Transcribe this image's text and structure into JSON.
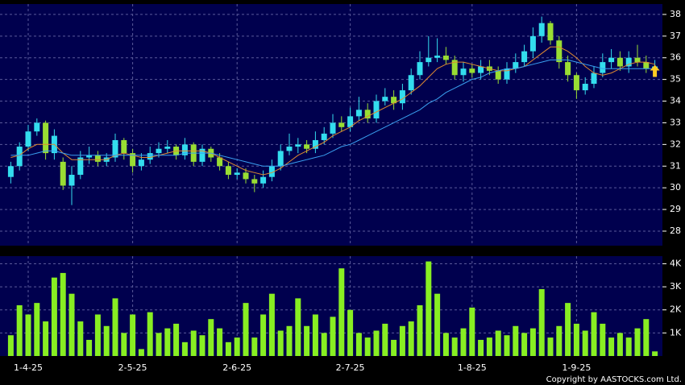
{
  "chart_data": [
    {
      "type": "candlestick",
      "up_color": "#33ddee",
      "down_color": "#99dd33",
      "open": [
        30.5,
        31.0,
        31.9,
        32.6,
        33.0,
        31.6,
        31.2,
        30.1,
        30.6,
        31.4,
        31.5,
        31.2,
        31.4,
        32.2,
        31.6,
        31.0,
        31.3,
        31.6,
        31.8,
        31.9,
        31.5,
        32.0,
        31.2,
        31.8,
        31.4,
        31.0,
        30.6,
        30.7,
        30.4,
        30.2,
        30.5,
        31.0,
        31.7,
        31.9,
        32.0,
        31.8,
        32.2,
        32.5,
        33.0,
        32.8,
        33.3,
        33.6,
        33.2,
        34.0,
        34.2,
        33.9,
        34.5,
        35.2,
        35.8,
        36.0,
        36.1,
        35.9,
        35.2,
        35.5,
        35.3,
        35.6,
        35.4,
        35.0,
        35.5,
        35.8,
        36.3,
        37.0,
        37.6,
        36.8,
        35.8,
        35.2,
        34.5,
        34.8,
        35.3,
        35.8,
        36.0,
        35.6,
        36.0,
        35.8,
        35.5
      ],
      "high": [
        31.2,
        32.1,
        32.9,
        33.2,
        33.1,
        32.7,
        31.4,
        31.0,
        31.7,
        31.9,
        31.7,
        31.6,
        32.5,
        32.3,
        31.8,
        31.6,
        31.9,
        32.1,
        32.2,
        32.0,
        32.3,
        32.1,
        32.0,
        31.9,
        31.6,
        31.2,
        30.9,
        30.9,
        30.6,
        30.8,
        31.3,
        32.0,
        32.5,
        32.3,
        32.2,
        32.6,
        32.8,
        33.4,
        33.3,
        33.7,
        34.2,
        33.9,
        34.3,
        34.6,
        34.5,
        34.8,
        35.5,
        36.3,
        37.0,
        36.9,
        36.5,
        36.1,
        35.8,
        35.7,
        35.9,
        35.9,
        35.6,
        35.8,
        36.2,
        36.6,
        37.4,
        37.9,
        37.7,
        37.0,
        36.1,
        35.3,
        35.1,
        35.6,
        36.2,
        36.4,
        36.3,
        36.3,
        36.6,
        36.1,
        35.9
      ],
      "low": [
        30.2,
        30.8,
        31.7,
        32.4,
        31.3,
        31.3,
        29.9,
        29.2,
        30.4,
        31.1,
        31.0,
        31.0,
        31.2,
        31.3,
        30.7,
        30.8,
        31.1,
        31.4,
        31.6,
        31.3,
        31.3,
        31.0,
        31.0,
        31.2,
        30.8,
        30.4,
        30.4,
        30.2,
        29.8,
        30.0,
        30.3,
        30.8,
        31.5,
        31.6,
        31.6,
        31.6,
        32.0,
        32.3,
        32.6,
        32.6,
        33.1,
        33.0,
        33.0,
        33.8,
        33.6,
        33.6,
        34.3,
        35.0,
        35.6,
        35.8,
        35.7,
        35.0,
        34.9,
        35.1,
        35.0,
        35.2,
        34.8,
        34.8,
        35.3,
        35.6,
        36.0,
        36.7,
        36.6,
        35.5,
        34.9,
        34.1,
        34.3,
        34.6,
        35.1,
        35.5,
        35.4,
        35.3,
        35.6,
        35.3,
        35.2
      ],
      "close": [
        31.0,
        31.9,
        32.6,
        33.0,
        31.6,
        32.4,
        30.1,
        30.6,
        31.4,
        31.5,
        31.2,
        31.4,
        32.2,
        31.6,
        31.0,
        31.3,
        31.6,
        31.8,
        31.9,
        31.5,
        32.0,
        31.2,
        31.8,
        31.4,
        31.0,
        30.6,
        30.7,
        30.4,
        30.2,
        30.5,
        31.0,
        31.7,
        31.9,
        32.0,
        31.8,
        32.2,
        32.5,
        33.0,
        32.8,
        33.3,
        33.6,
        33.2,
        34.0,
        34.2,
        33.9,
        34.5,
        35.2,
        35.8,
        36.0,
        36.1,
        35.9,
        35.2,
        35.5,
        35.3,
        35.6,
        35.4,
        35.0,
        35.5,
        35.8,
        36.3,
        37.0,
        37.6,
        36.8,
        35.8,
        35.2,
        34.5,
        34.8,
        35.3,
        35.8,
        36.0,
        35.6,
        36.0,
        35.8,
        35.5,
        35.6
      ],
      "series": [
        {
          "color": "#e08a30",
          "values": [
            31.4,
            31.5,
            31.8,
            32.0,
            32.0,
            32.0,
            31.6,
            31.3,
            31.3,
            31.3,
            31.3,
            31.3,
            31.5,
            31.6,
            31.5,
            31.4,
            31.4,
            31.5,
            31.6,
            31.7,
            31.7,
            31.7,
            31.7,
            31.6,
            31.4,
            31.2,
            31.0,
            30.8,
            30.7,
            30.6,
            30.7,
            30.9,
            31.2,
            31.5,
            31.7,
            31.9,
            32.1,
            32.4,
            32.6,
            32.8,
            33.1,
            33.3,
            33.5,
            33.7,
            33.9,
            34.1,
            34.4,
            34.7,
            35.1,
            35.5,
            35.7,
            35.8,
            35.8,
            35.7,
            35.6,
            35.5,
            35.4,
            35.4,
            35.5,
            35.6,
            35.9,
            36.2,
            36.5,
            36.5,
            36.3,
            36.0,
            35.6,
            35.3,
            35.2,
            35.3,
            35.5,
            35.7,
            35.8,
            35.8,
            35.7
          ]
        },
        {
          "color": "#3aa0f0",
          "values": [
            31.5,
            31.5,
            31.5,
            31.6,
            31.7,
            31.7,
            31.6,
            31.5,
            31.5,
            31.5,
            31.5,
            31.5,
            31.5,
            31.5,
            31.5,
            31.5,
            31.5,
            31.5,
            31.5,
            31.5,
            31.6,
            31.6,
            31.6,
            31.6,
            31.5,
            31.4,
            31.3,
            31.2,
            31.1,
            31.0,
            31.0,
            31.0,
            31.1,
            31.2,
            31.3,
            31.4,
            31.5,
            31.7,
            31.9,
            32.0,
            32.2,
            32.4,
            32.6,
            32.8,
            33.0,
            33.2,
            33.4,
            33.6,
            33.9,
            34.1,
            34.4,
            34.6,
            34.8,
            35.0,
            35.1,
            35.3,
            35.4,
            35.5,
            35.5,
            35.6,
            35.7,
            35.8,
            35.9,
            35.9,
            35.9,
            35.8,
            35.7,
            35.6,
            35.5,
            35.5,
            35.5,
            35.5,
            35.5,
            35.5,
            35.5
          ]
        }
      ],
      "ylim": [
        27.33,
        38.48
      ],
      "yticks": [
        28,
        29,
        30,
        31,
        32,
        33,
        34,
        35,
        36,
        37,
        38
      ],
      "grid": true
    },
    {
      "type": "bar",
      "color": "#88ee22",
      "categories": [
        null,
        null,
        "1-4-25",
        null,
        null,
        null,
        null,
        null,
        null,
        null,
        null,
        null,
        null,
        null,
        "2-5-25",
        null,
        null,
        null,
        null,
        null,
        null,
        null,
        null,
        null,
        null,
        null,
        "2-6-25",
        null,
        null,
        null,
        null,
        null,
        null,
        null,
        null,
        null,
        null,
        null,
        null,
        "2-7-25",
        null,
        null,
        null,
        null,
        null,
        null,
        null,
        null,
        null,
        null,
        null,
        null,
        null,
        "1-8-25",
        null,
        null,
        null,
        null,
        null,
        null,
        null,
        null,
        null,
        null,
        null,
        "1-9-25",
        null,
        null,
        null,
        null,
        null,
        null,
        null,
        null,
        null
      ],
      "values": [
        900,
        2200,
        1800,
        2300,
        1500,
        3400,
        3600,
        2700,
        1500,
        700,
        1800,
        1300,
        2500,
        1000,
        1800,
        300,
        1900,
        1000,
        1200,
        1400,
        600,
        1100,
        900,
        1600,
        1200,
        600,
        800,
        2300,
        800,
        1800,
        2700,
        1100,
        1300,
        2500,
        1300,
        1800,
        1000,
        1700,
        3800,
        2000,
        1000,
        800,
        1100,
        1400,
        700,
        1300,
        1500,
        2200,
        4100,
        2700,
        1000,
        800,
        1200,
        2100,
        700,
        800,
        1100,
        900,
        1300,
        1000,
        1200,
        2900,
        800,
        1300,
        2300,
        1400,
        1100,
        1900,
        1400,
        800,
        1000,
        800,
        1200,
        1600,
        200
      ],
      "ylim": [
        0,
        4330
      ],
      "yticks": [
        {
          "value": 1000,
          "label": "1K"
        },
        {
          "value": 2000,
          "label": "2K"
        },
        {
          "value": 3000,
          "label": "3K"
        },
        {
          "value": 4000,
          "label": "4K"
        }
      ],
      "grid": true
    }
  ],
  "footer": "Copyright by AASTOCKS.com Ltd."
}
